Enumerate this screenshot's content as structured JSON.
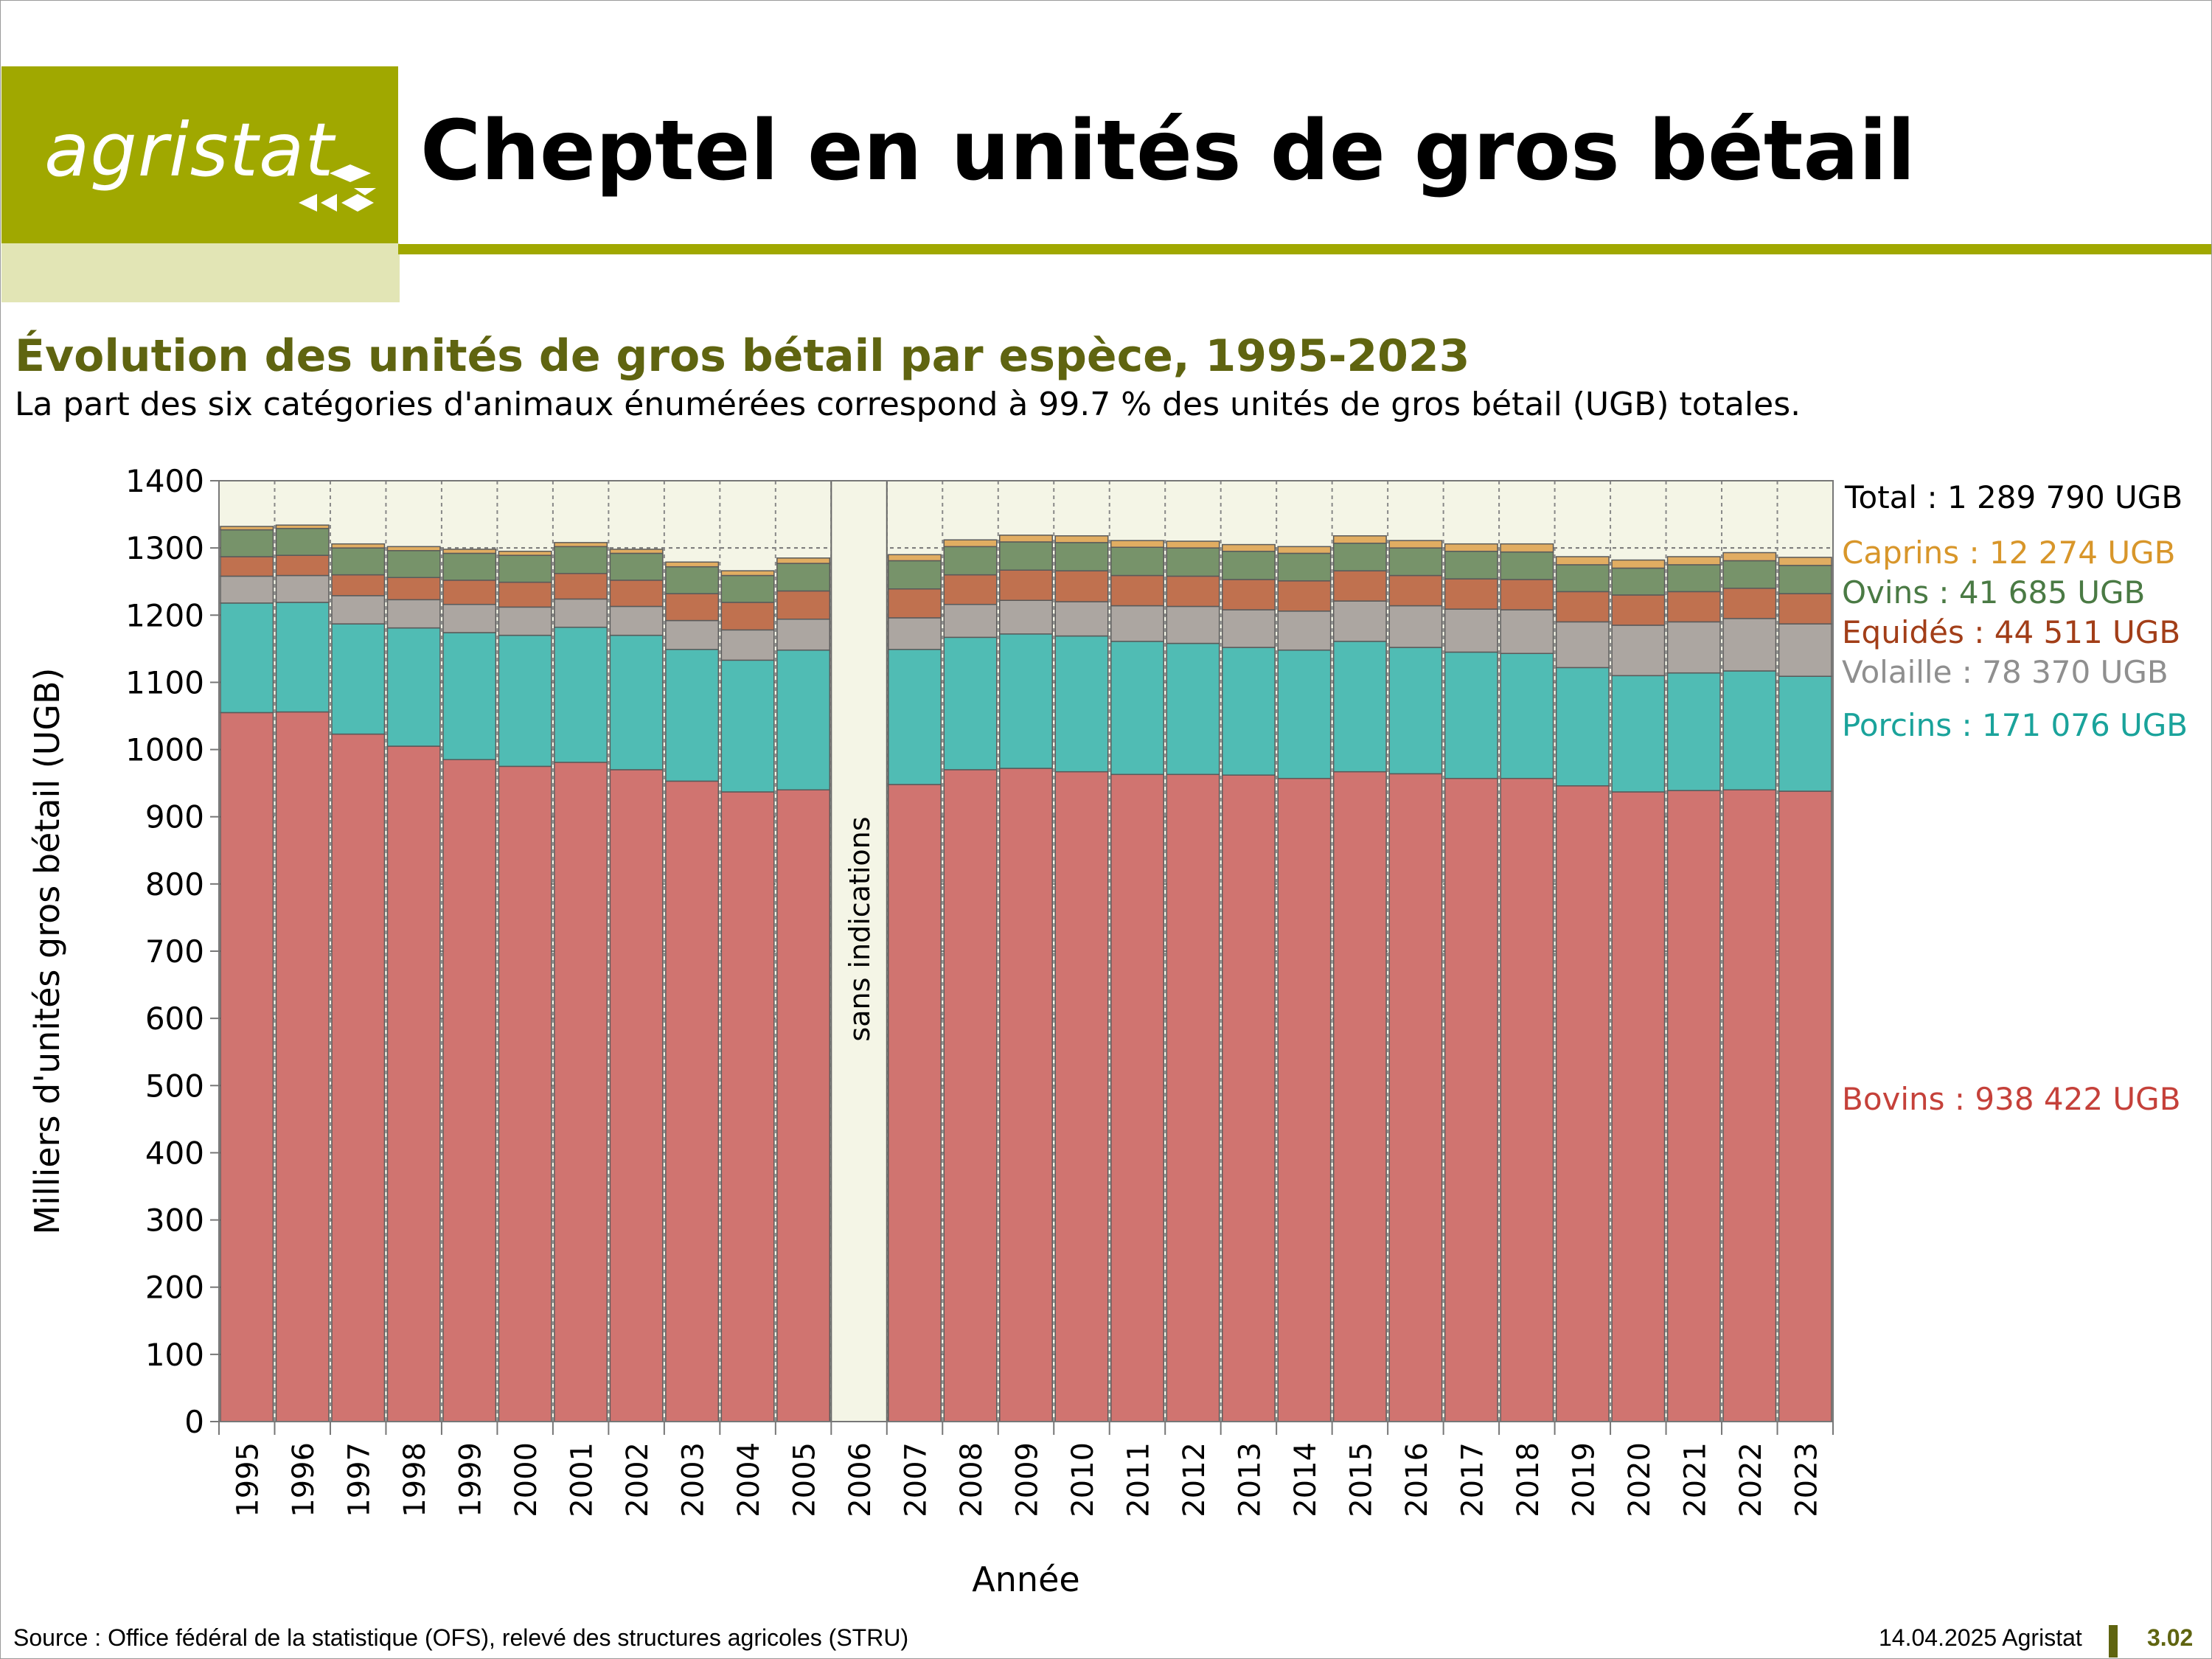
{
  "header": {
    "logo_text": "agristat",
    "title": "Cheptel en unités de gros bétail"
  },
  "colors": {
    "brand_olive": "#a0a800",
    "brand_light": "#e2e5b5",
    "subtitle_olive": "#5f6410",
    "plot_background": "#f4f5e6"
  },
  "chart_data": {
    "type": "bar",
    "stacked": true,
    "title": "Évolution des unités de gros bétail par espèce, 1995-2023",
    "subtitle": "La part des six catégories d'animaux énumérées correspond à 99.7 % des unités de gros bétail (UGB) totales.",
    "xlabel": "Année",
    "ylabel": "Milliers d'unités gros bétail (UGB)",
    "ylim": [
      0,
      1400
    ],
    "yticks": [
      0,
      100,
      200,
      300,
      400,
      500,
      600,
      700,
      800,
      900,
      1000,
      1100,
      1200,
      1300,
      1400
    ],
    "categories": [
      "1995",
      "1996",
      "1997",
      "1998",
      "1999",
      "2000",
      "2001",
      "2002",
      "2003",
      "2004",
      "2005",
      "2006",
      "2007",
      "2008",
      "2009",
      "2010",
      "2011",
      "2012",
      "2013",
      "2014",
      "2015",
      "2016",
      "2017",
      "2018",
      "2019",
      "2020",
      "2021",
      "2022",
      "2023"
    ],
    "no_data_category": "2006",
    "no_data_label": "sans indications",
    "total_label": "Total : 1 289 790 UGB",
    "series": [
      {
        "name": "Bovins",
        "color": "#d07470",
        "label": "Bovins : 938 422 UGB",
        "values": [
          1055,
          1056,
          1023,
          1005,
          985,
          975,
          981,
          970,
          953,
          937,
          940,
          null,
          948,
          970,
          972,
          967,
          963,
          963,
          962,
          957,
          967,
          964,
          957,
          957,
          946,
          937,
          939,
          940,
          938
        ]
      },
      {
        "name": "Porcins",
        "color": "#50bcb4",
        "label": "Porcins : 171 076 UGB",
        "values": [
          163,
          163,
          164,
          176,
          189,
          195,
          201,
          200,
          196,
          196,
          208,
          null,
          201,
          197,
          200,
          202,
          198,
          195,
          190,
          191,
          194,
          188,
          188,
          186,
          176,
          173,
          175,
          177,
          171
        ]
      },
      {
        "name": "Volaille",
        "color": "#aca6a1",
        "label": "Volaille : 78 370 UGB",
        "values": [
          40,
          40,
          42,
          42,
          42,
          42,
          42,
          43,
          43,
          45,
          46,
          null,
          47,
          49,
          50,
          51,
          53,
          55,
          56,
          58,
          60,
          62,
          64,
          65,
          68,
          75,
          76,
          78,
          78
        ]
      },
      {
        "name": "Equidés",
        "color": "#c0714f",
        "label": "Equidés : 44 511 UGB",
        "values": [
          29,
          30,
          31,
          33,
          36,
          37,
          38,
          39,
          40,
          41,
          42,
          null,
          43,
          44,
          45,
          46,
          45,
          45,
          45,
          45,
          45,
          45,
          45,
          45,
          45,
          45,
          45,
          45,
          45
        ]
      },
      {
        "name": "Ovins",
        "color": "#77936a",
        "label": "Ovins : 41 685 UGB",
        "values": [
          40,
          40,
          40,
          40,
          40,
          40,
          40,
          40,
          40,
          40,
          41,
          null,
          42,
          42,
          42,
          42,
          42,
          42,
          42,
          41,
          41,
          41,
          41,
          41,
          40,
          40,
          40,
          41,
          42
        ]
      },
      {
        "name": "Caprins",
        "color": "#e1ad62",
        "label": "Caprins : 12 274 UGB",
        "values": [
          5,
          5,
          6,
          6,
          6,
          6,
          6,
          6,
          7,
          7,
          8,
          null,
          9,
          10,
          10,
          10,
          10,
          10,
          10,
          10,
          11,
          11,
          11,
          12,
          12,
          12,
          12,
          12,
          12
        ]
      }
    ]
  },
  "footer": {
    "source": "Source : Office fédéral de la statistique (OFS), relevé des structures agricoles (STRU)",
    "date": "14.04.2025 Agristat",
    "page": "3.02"
  }
}
